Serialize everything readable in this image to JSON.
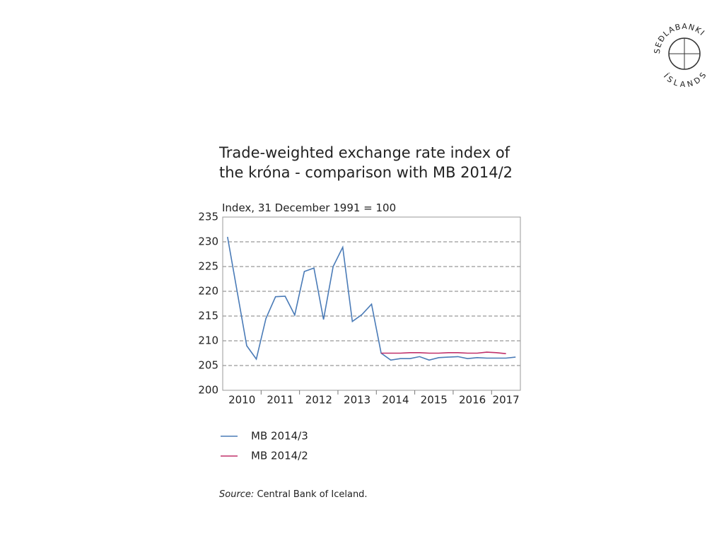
{
  "logo": {
    "top": "SEÐLABANKI",
    "bottom": "ÍSLANDS"
  },
  "chart_data": {
    "type": "line",
    "title": "Trade-weighted exchange rate index of the króna - comparison with MB 2014/2",
    "subtitle": "Index, 31 December 1991 = 100",
    "categories": [
      "2010",
      null,
      null,
      null,
      "2011",
      null,
      null,
      null,
      "2012",
      null,
      null,
      null,
      "2013",
      null,
      null,
      null,
      "2014",
      null,
      null,
      null,
      "2015",
      null,
      null,
      null,
      "2016",
      null,
      null,
      null,
      "2017",
      null,
      null
    ],
    "series": [
      {
        "name": "MB 2014/3",
        "color": "#4a7bb7",
        "values": [
          231,
          220,
          209,
          206.3,
          214.5,
          218.9,
          219,
          215.2,
          224,
          224.7,
          214.3,
          225,
          228.9,
          213.9,
          215.3,
          217.4,
          207.5,
          206.1,
          206.4,
          206.4,
          206.8,
          206.1,
          206.6,
          206.7,
          206.8,
          206.4,
          206.6,
          206.5,
          206.5,
          206.5,
          206.7
        ]
      },
      {
        "name": "MB 2014/2",
        "color": "#c0306a",
        "values": [
          null,
          null,
          null,
          null,
          null,
          null,
          null,
          null,
          null,
          null,
          null,
          null,
          null,
          null,
          null,
          null,
          207.5,
          207.5,
          207.5,
          207.6,
          207.6,
          207.5,
          207.5,
          207.6,
          207.6,
          207.5,
          207.5,
          207.7,
          207.6,
          207.4,
          null
        ]
      }
    ],
    "ylim": [
      200,
      235
    ],
    "yticks": [
      200,
      205,
      210,
      215,
      220,
      225,
      230,
      235
    ],
    "grid": true,
    "source_label": "Source:",
    "source": "Central Bank of Iceland."
  }
}
